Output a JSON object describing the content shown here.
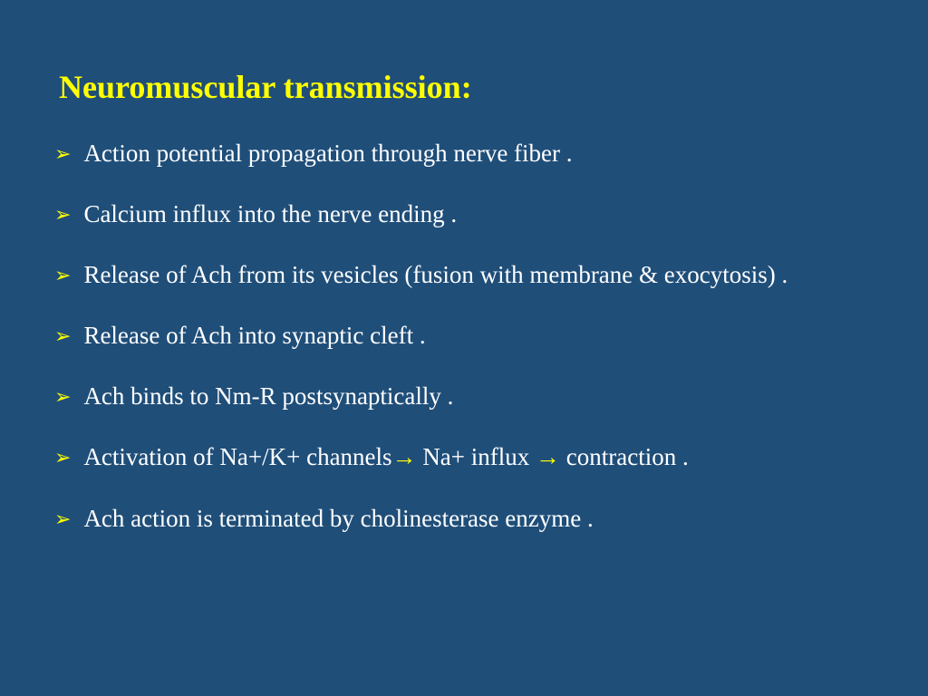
{
  "slide": {
    "title": "Neuromuscular transmission:",
    "background_color": "#1f4e79",
    "title_color": "#ffff00",
    "text_color": "#ffffff",
    "bullet_color": "#ffff00",
    "arrow_color": "#ffff00",
    "title_fontsize": 36,
    "body_fontsize": 27,
    "bullet_marker": "➢",
    "bullets": [
      {
        "text": " Action potential propagation through nerve fiber ."
      },
      {
        "text": "Calcium influx into the nerve ending ."
      },
      {
        "text": " Release of Ach from its vesicles (fusion with membrane & exocytosis) ."
      },
      {
        "text": " Release of Ach into synaptic cleft ."
      },
      {
        "text": "Ach binds to Nm-R postsynaptically ."
      },
      {
        "text": "Activation of Na+/K+ channels→ Na+ influx → contraction .",
        "has_arrows": true
      },
      {
        "text": "Ach action is terminated by cholinesterase enzyme ."
      }
    ]
  }
}
